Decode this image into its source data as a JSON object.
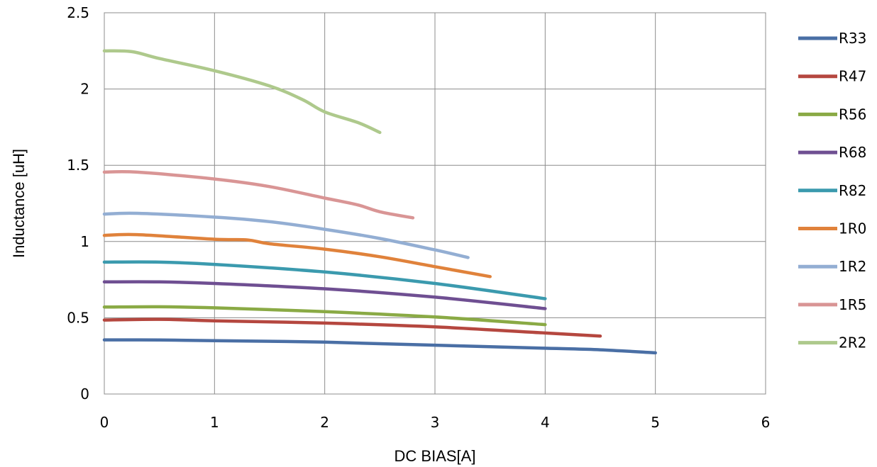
{
  "chart_data": {
    "type": "line",
    "title": "",
    "xlabel": "DC BIAS[A]",
    "ylabel": "Inductance [uH]",
    "xlim": [
      0,
      6
    ],
    "ylim": [
      0,
      2.5
    ],
    "x_ticks": [
      "0",
      "1",
      "2",
      "3",
      "4",
      "5",
      "6"
    ],
    "y_ticks": [
      "0",
      "0.5",
      "1",
      "1.5",
      "2",
      "2.5"
    ],
    "grid": true,
    "legend_position": "right",
    "series": [
      {
        "name": "R33",
        "color": "#4a6fa5",
        "x": [
          0,
          0.5,
          1,
          2,
          3,
          4,
          4.5,
          5
        ],
        "y": [
          0.355,
          0.354,
          0.35,
          0.34,
          0.32,
          0.3,
          0.29,
          0.27
        ]
      },
      {
        "name": "R47",
        "color": "#b5473f",
        "x": [
          0,
          0.5,
          1,
          2,
          3,
          4,
          4.5
        ],
        "y": [
          0.485,
          0.49,
          0.48,
          0.465,
          0.44,
          0.4,
          0.38
        ]
      },
      {
        "name": "R56",
        "color": "#8aaa45",
        "x": [
          0,
          0.5,
          1,
          2,
          3,
          4
        ],
        "y": [
          0.57,
          0.572,
          0.565,
          0.54,
          0.505,
          0.455
        ]
      },
      {
        "name": "R68",
        "color": "#6f4f92",
        "x": [
          0,
          0.5,
          1,
          2,
          3,
          4
        ],
        "y": [
          0.735,
          0.735,
          0.725,
          0.69,
          0.635,
          0.56
        ]
      },
      {
        "name": "R82",
        "color": "#3b9aae",
        "x": [
          0,
          0.5,
          1,
          2,
          3,
          4
        ],
        "y": [
          0.865,
          0.865,
          0.85,
          0.8,
          0.725,
          0.625
        ]
      },
      {
        "name": "1R0",
        "color": "#e0823b",
        "x": [
          0,
          0.3,
          1,
          1.3,
          1.5,
          2,
          2.5,
          3,
          3.5
        ],
        "y": [
          1.04,
          1.045,
          1.015,
          1.01,
          0.985,
          0.95,
          0.9,
          0.835,
          0.77
        ]
      },
      {
        "name": "1R2",
        "color": "#93aed3",
        "x": [
          0,
          0.3,
          1,
          1.5,
          2,
          2.5,
          3,
          3.3
        ],
        "y": [
          1.18,
          1.185,
          1.16,
          1.13,
          1.08,
          1.02,
          0.945,
          0.895
        ]
      },
      {
        "name": "1R5",
        "color": "#d99595",
        "x": [
          0,
          0.3,
          1,
          1.5,
          2,
          2.3,
          2.5,
          2.8
        ],
        "y": [
          1.455,
          1.455,
          1.41,
          1.36,
          1.285,
          1.24,
          1.195,
          1.155
        ]
      },
      {
        "name": "2R2",
        "color": "#aec98c",
        "x": [
          0,
          0.25,
          0.5,
          1,
          1.5,
          1.8,
          2,
          2.3,
          2.5
        ],
        "y": [
          2.25,
          2.245,
          2.2,
          2.12,
          2.02,
          1.93,
          1.85,
          1.78,
          1.715
        ]
      }
    ]
  }
}
